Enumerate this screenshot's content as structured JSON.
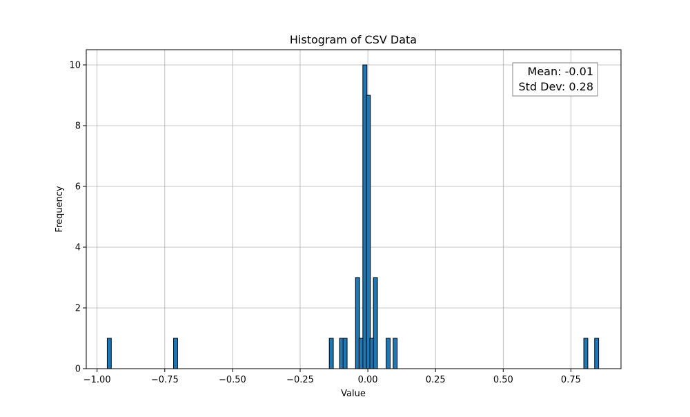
{
  "chart_data": {
    "type": "bar",
    "title": "Histogram of CSV Data",
    "xlabel": "Value",
    "ylabel": "Frequency",
    "xlim": [
      -1.04,
      0.935
    ],
    "ylim": [
      0,
      10.5
    ],
    "xticks": [
      -1.0,
      -0.75,
      -0.5,
      -0.25,
      0.0,
      0.25,
      0.5,
      0.75
    ],
    "xtick_labels": [
      "−1.00",
      "−0.75",
      "−0.50",
      "−0.25",
      "0.00",
      "0.25",
      "0.50",
      "0.75"
    ],
    "yticks": [
      0,
      2,
      4,
      6,
      8,
      10
    ],
    "ytick_labels": [
      "0",
      "2",
      "4",
      "6",
      "8",
      "10"
    ],
    "grid": true,
    "bar_color": "#1f77b4",
    "edge_color": "#000000",
    "bin_width": 0.0149,
    "bins": [
      {
        "x": -0.955,
        "count": 1
      },
      {
        "x": -0.71,
        "count": 1
      },
      {
        "x": -0.135,
        "count": 1
      },
      {
        "x": -0.097,
        "count": 1
      },
      {
        "x": -0.084,
        "count": 1
      },
      {
        "x": -0.038,
        "count": 3
      },
      {
        "x": -0.025,
        "count": 1
      },
      {
        "x": -0.011,
        "count": 10
      },
      {
        "x": 0.002,
        "count": 9
      },
      {
        "x": 0.015,
        "count": 1
      },
      {
        "x": 0.028,
        "count": 3
      },
      {
        "x": 0.075,
        "count": 1
      },
      {
        "x": 0.101,
        "count": 1
      },
      {
        "x": 0.805,
        "count": 1
      },
      {
        "x": 0.845,
        "count": 1
      }
    ],
    "annotation": {
      "lines": [
        "Mean: -0.01",
        "Std Dev: 0.28"
      ],
      "placement": "top-right"
    }
  }
}
